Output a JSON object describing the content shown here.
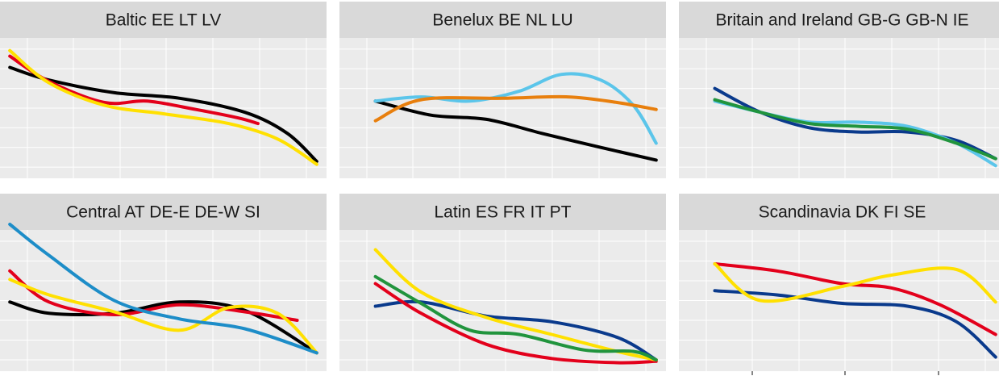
{
  "chart_data": {
    "type": "line",
    "layout": "facet grid, 3 columns x 2 rows, free y per panel, no axis tick labels shown",
    "grid": true,
    "colors": {
      "panel_background": "#ebebeb",
      "strip_background": "#d9d9d9",
      "gridline": "#ffffff",
      "black": "#000000",
      "red": "#e3001b",
      "yellow": "#ffe000",
      "light_blue": "#5bc5ea",
      "orange": "#e87f0d",
      "navy": "#0a3a8c",
      "green": "#21943d",
      "steel_blue": "#1d8dc8"
    },
    "xlim": [
      0,
      1
    ],
    "ylim": [
      0,
      1
    ],
    "facets": [
      {
        "title": "Baltic EE LT LV",
        "series": [
          {
            "color": "black",
            "points": [
              [
                0.03,
                0.79
              ],
              [
                0.15,
                0.7
              ],
              [
                0.35,
                0.61
              ],
              [
                0.55,
                0.57
              ],
              [
                0.75,
                0.47
              ],
              [
                0.88,
                0.32
              ],
              [
                0.97,
                0.12
              ]
            ]
          },
          {
            "color": "red",
            "points": [
              [
                0.03,
                0.87
              ],
              [
                0.15,
                0.69
              ],
              [
                0.32,
                0.54
              ],
              [
                0.45,
                0.55
              ],
              [
                0.6,
                0.49
              ],
              [
                0.73,
                0.43
              ],
              [
                0.79,
                0.39
              ]
            ]
          },
          {
            "color": "yellow",
            "points": [
              [
                0.03,
                0.91
              ],
              [
                0.15,
                0.68
              ],
              [
                0.32,
                0.52
              ],
              [
                0.5,
                0.46
              ],
              [
                0.7,
                0.39
              ],
              [
                0.85,
                0.28
              ],
              [
                0.97,
                0.1
              ]
            ]
          }
        ]
      },
      {
        "title": "Benelux BE NL LU",
        "series": [
          {
            "color": "black",
            "points": [
              [
                0.11,
                0.55
              ],
              [
                0.28,
                0.45
              ],
              [
                0.45,
                0.42
              ],
              [
                0.62,
                0.32
              ],
              [
                0.8,
                0.22
              ],
              [
                0.97,
                0.13
              ]
            ]
          },
          {
            "color": "light_blue",
            "points": [
              [
                0.11,
                0.55
              ],
              [
                0.25,
                0.58
              ],
              [
                0.4,
                0.55
              ],
              [
                0.55,
                0.62
              ],
              [
                0.68,
                0.74
              ],
              [
                0.8,
                0.7
              ],
              [
                0.9,
                0.52
              ],
              [
                0.97,
                0.25
              ]
            ]
          },
          {
            "color": "orange",
            "points": [
              [
                0.11,
                0.41
              ],
              [
                0.25,
                0.56
              ],
              [
                0.5,
                0.57
              ],
              [
                0.7,
                0.58
              ],
              [
                0.85,
                0.54
              ],
              [
                0.97,
                0.49
              ]
            ]
          }
        ]
      },
      {
        "title": "Britain and Ireland GB-G GB-N IE",
        "series": [
          {
            "color": "navy",
            "points": [
              [
                0.11,
                0.64
              ],
              [
                0.25,
                0.47
              ],
              [
                0.4,
                0.36
              ],
              [
                0.55,
                0.33
              ],
              [
                0.7,
                0.33
              ],
              [
                0.85,
                0.27
              ],
              [
                0.97,
                0.14
              ]
            ]
          },
          {
            "color": "light_blue",
            "points": [
              [
                0.11,
                0.55
              ],
              [
                0.25,
                0.47
              ],
              [
                0.4,
                0.4
              ],
              [
                0.55,
                0.4
              ],
              [
                0.7,
                0.37
              ],
              [
                0.85,
                0.25
              ],
              [
                0.97,
                0.09
              ]
            ]
          },
          {
            "color": "green",
            "points": [
              [
                0.11,
                0.56
              ],
              [
                0.25,
                0.47
              ],
              [
                0.4,
                0.39
              ],
              [
                0.55,
                0.37
              ],
              [
                0.7,
                0.35
              ],
              [
                0.85,
                0.25
              ],
              [
                0.97,
                0.14
              ]
            ]
          }
        ]
      },
      {
        "title": "Central AT DE-E DE-W SI",
        "series": [
          {
            "color": "black",
            "points": [
              [
                0.03,
                0.49
              ],
              [
                0.15,
                0.41
              ],
              [
                0.35,
                0.41
              ],
              [
                0.55,
                0.49
              ],
              [
                0.75,
                0.43
              ],
              [
                0.97,
                0.13
              ]
            ]
          },
          {
            "color": "red",
            "points": [
              [
                0.03,
                0.71
              ],
              [
                0.15,
                0.49
              ],
              [
                0.35,
                0.4
              ],
              [
                0.55,
                0.47
              ],
              [
                0.75,
                0.42
              ],
              [
                0.91,
                0.36
              ]
            ]
          },
          {
            "color": "yellow",
            "points": [
              [
                0.03,
                0.65
              ],
              [
                0.15,
                0.54
              ],
              [
                0.35,
                0.42
              ],
              [
                0.55,
                0.29
              ],
              [
                0.7,
                0.45
              ],
              [
                0.85,
                0.41
              ],
              [
                0.97,
                0.13
              ]
            ]
          },
          {
            "color": "steel_blue",
            "points": [
              [
                0.03,
                1.04
              ],
              [
                0.15,
                0.82
              ],
              [
                0.35,
                0.5
              ],
              [
                0.55,
                0.37
              ],
              [
                0.75,
                0.3
              ],
              [
                0.97,
                0.13
              ]
            ]
          }
        ]
      },
      {
        "title": "Latin ES FR IT PT",
        "series": [
          {
            "color": "navy",
            "points": [
              [
                0.11,
                0.46
              ],
              [
                0.25,
                0.49
              ],
              [
                0.45,
                0.39
              ],
              [
                0.65,
                0.35
              ],
              [
                0.85,
                0.24
              ],
              [
                0.97,
                0.08
              ]
            ]
          },
          {
            "color": "red",
            "points": [
              [
                0.11,
                0.62
              ],
              [
                0.25,
                0.41
              ],
              [
                0.45,
                0.19
              ],
              [
                0.65,
                0.09
              ],
              [
                0.85,
                0.06
              ],
              [
                0.97,
                0.07
              ]
            ]
          },
          {
            "color": "yellow",
            "points": [
              [
                0.11,
                0.86
              ],
              [
                0.25,
                0.56
              ],
              [
                0.45,
                0.38
              ],
              [
                0.65,
                0.26
              ],
              [
                0.85,
                0.14
              ],
              [
                0.97,
                0.08
              ]
            ]
          },
          {
            "color": "green",
            "points": [
              [
                0.11,
                0.67
              ],
              [
                0.25,
                0.48
              ],
              [
                0.4,
                0.29
              ],
              [
                0.55,
                0.26
              ],
              [
                0.75,
                0.15
              ],
              [
                0.9,
                0.14
              ],
              [
                0.97,
                0.08
              ]
            ]
          }
        ]
      },
      {
        "title": "Scandinavia DK FI SE",
        "series": [
          {
            "color": "navy",
            "points": [
              [
                0.11,
                0.57
              ],
              [
                0.3,
                0.54
              ],
              [
                0.5,
                0.48
              ],
              [
                0.7,
                0.46
              ],
              [
                0.85,
                0.35
              ],
              [
                0.97,
                0.1
              ]
            ]
          },
          {
            "color": "red",
            "points": [
              [
                0.11,
                0.76
              ],
              [
                0.3,
                0.71
              ],
              [
                0.5,
                0.62
              ],
              [
                0.65,
                0.59
              ],
              [
                0.8,
                0.47
              ],
              [
                0.97,
                0.26
              ]
            ]
          },
          {
            "color": "yellow",
            "points": [
              [
                0.11,
                0.76
              ],
              [
                0.25,
                0.5
              ],
              [
                0.5,
                0.6
              ],
              [
                0.65,
                0.68
              ],
              [
                0.85,
                0.72
              ],
              [
                0.97,
                0.49
              ]
            ]
          }
        ]
      }
    ]
  }
}
